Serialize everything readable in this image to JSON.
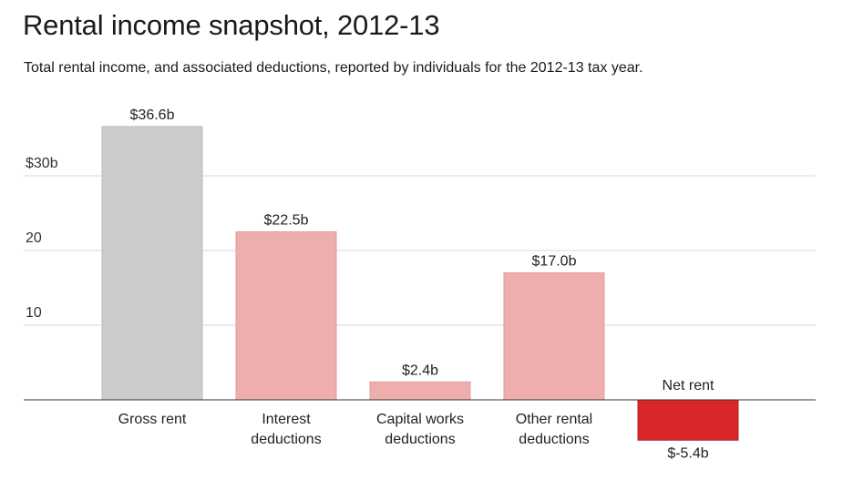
{
  "title": "Rental income snapshot, 2012-13",
  "subtitle": "Total rental income, and associated deductions, reported by individuals for the 2012-13 tax year.",
  "chart_data": {
    "type": "bar",
    "title": "Rental income snapshot, 2012-13",
    "subtitle": "Total rental income, and associated deductions, reported by individuals for the 2012-13 tax year.",
    "xlabel": "",
    "ylabel": "",
    "ylim": [
      -5.4,
      36.6
    ],
    "grid": true,
    "y_ticks": [
      {
        "value": 30,
        "label": "$30b"
      },
      {
        "value": 20,
        "label": "20"
      },
      {
        "value": 10,
        "label": "10"
      }
    ],
    "bars": [
      {
        "category": "Gross rent",
        "value": 36.6,
        "value_label": "$36.6b",
        "color": "#cccccc"
      },
      {
        "category": "Interest deductions",
        "value": 22.5,
        "value_label": "$22.5b",
        "color": "#eeaeae"
      },
      {
        "category": "Capital works deductions",
        "value": 2.4,
        "value_label": "$2.4b",
        "color": "#eeaeae"
      },
      {
        "category": "Other rental deductions",
        "value": 17.0,
        "value_label": "$17.0b",
        "color": "#eeaeae"
      },
      {
        "category": "Net rent",
        "value": -5.4,
        "value_label": "$-5.4b",
        "color": "#d8262a"
      }
    ]
  }
}
